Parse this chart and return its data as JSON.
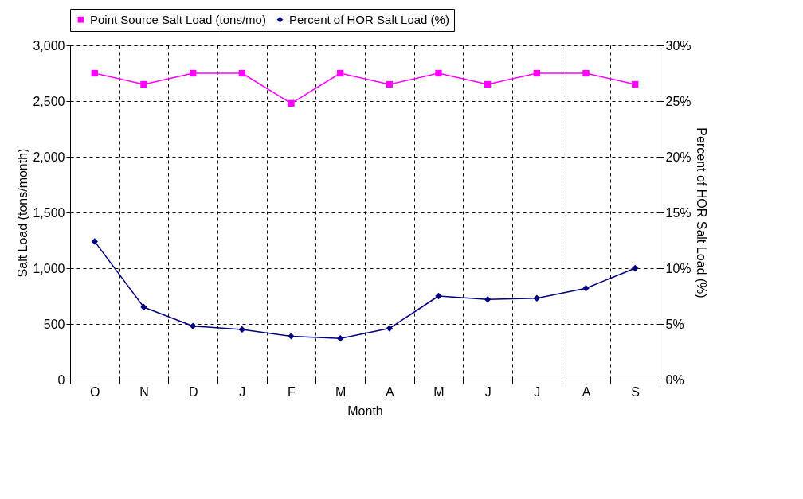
{
  "chart_data": {
    "type": "line",
    "xlabel": "Month",
    "ylabel": "Salt Load (tons/month)",
    "y2label": "Percent of HOR Salt Load (%)",
    "categories": [
      "O",
      "N",
      "D",
      "J",
      "F",
      "M",
      "A",
      "M",
      "J",
      "J",
      "A",
      "S"
    ],
    "series": [
      {
        "name": "Point Source Salt Load (tons/mo)",
        "color": "#ff00ff",
        "marker": "square",
        "values": [
          2750,
          2650,
          2750,
          2750,
          2480,
          2750,
          2650,
          2750,
          2650,
          2750,
          2750,
          2650
        ]
      },
      {
        "name": "Percent of HOR Salt Load (%)",
        "color": "#000080",
        "marker": "diamond",
        "axis": "y2",
        "values": [
          12.4,
          6.5,
          4.8,
          4.5,
          3.9,
          3.7,
          4.6,
          7.5,
          7.2,
          7.3,
          8.2,
          10.0
        ]
      }
    ],
    "ylim": [
      0,
      3000
    ],
    "yticks": [
      {
        "value": 0,
        "label": "0"
      },
      {
        "value": 500,
        "label": "500"
      },
      {
        "value": 1000,
        "label": "1,000"
      },
      {
        "value": 1500,
        "label": "1,500"
      },
      {
        "value": 2000,
        "label": "2,000"
      },
      {
        "value": 2500,
        "label": "2,500"
      },
      {
        "value": 3000,
        "label": "3,000"
      }
    ],
    "y2lim": [
      0,
      30
    ],
    "y2ticks": [
      {
        "value": 0,
        "label": "0%"
      },
      {
        "value": 5,
        "label": "5%"
      },
      {
        "value": 10,
        "label": "10%"
      },
      {
        "value": 15,
        "label": "15%"
      },
      {
        "value": 20,
        "label": "20%"
      },
      {
        "value": 25,
        "label": "25%"
      },
      {
        "value": 30,
        "label": "30%"
      }
    ],
    "grid": true,
    "legend": "top",
    "line_style": "solid"
  }
}
